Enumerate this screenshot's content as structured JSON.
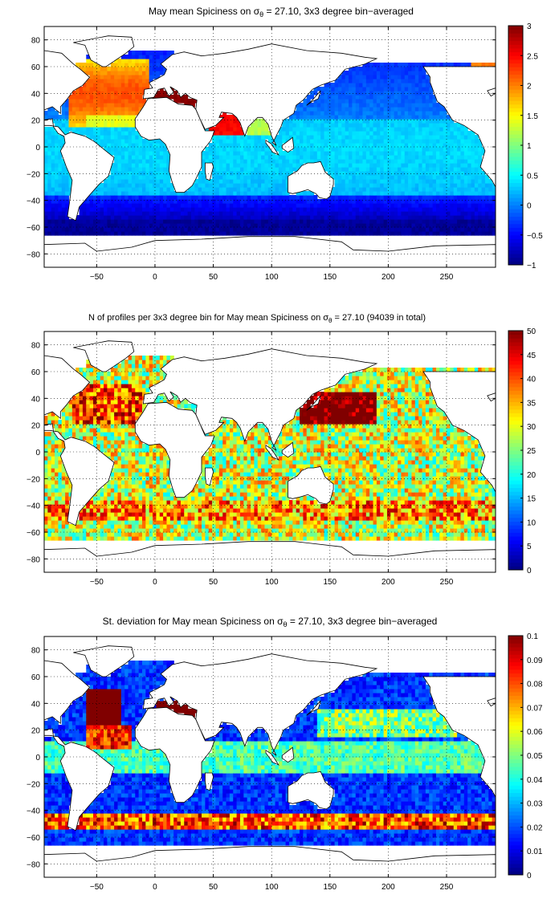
{
  "chart_data": [
    {
      "type": "heatmap",
      "title": "May mean Spiciness on σ",
      "title_sub": "θ",
      "title_rest": " = 27.10, 3x3 degree bin−averaged",
      "x_ticks": [
        "−50",
        "0",
        "50",
        "100",
        "150",
        "200",
        "250"
      ],
      "y_ticks": [
        "80",
        "60",
        "40",
        "20",
        "0",
        "−20",
        "−40",
        "−60",
        "−80"
      ],
      "xlim": [
        -95,
        292
      ],
      "ylim": [
        -90,
        90
      ],
      "colorbar": {
        "min": -1,
        "max": 3,
        "ticks": [
          "3",
          "2.5",
          "2",
          "1.5",
          "1",
          "0.5",
          "0",
          "−0.5",
          "−1"
        ]
      },
      "colormap": "jet",
      "grid": "dotted",
      "field": "spiciness"
    },
    {
      "type": "heatmap",
      "title": "N of profiles per 3x3 degree bin for May mean Spiciness on σ",
      "title_sub": "θ",
      "title_rest": " = 27.10 (94039 in total)",
      "x_ticks": [
        "−50",
        "0",
        "50",
        "100",
        "150",
        "200",
        "250"
      ],
      "y_ticks": [
        "80",
        "60",
        "40",
        "20",
        "0",
        "−20",
        "−40",
        "−60",
        "−80"
      ],
      "xlim": [
        -95,
        292
      ],
      "ylim": [
        -90,
        90
      ],
      "colorbar": {
        "min": 0,
        "max": 50,
        "ticks": [
          "50",
          "45",
          "40",
          "35",
          "30",
          "25",
          "20",
          "15",
          "10",
          "5",
          "0"
        ]
      },
      "colormap": "jet",
      "grid": "dotted",
      "field": "count"
    },
    {
      "type": "heatmap",
      "title": "St. deviation for May mean Spiciness on σ",
      "title_sub": "θ",
      "title_rest": " = 27.10, 3x3 degree bin−averaged",
      "x_ticks": [
        "−50",
        "0",
        "50",
        "100",
        "150",
        "200",
        "250"
      ],
      "y_ticks": [
        "80",
        "60",
        "40",
        "20",
        "0",
        "−20",
        "−40",
        "−60",
        "−80"
      ],
      "xlim": [
        -95,
        292
      ],
      "ylim": [
        -90,
        90
      ],
      "colorbar": {
        "min": 0,
        "max": 0.1,
        "ticks": [
          "0.1",
          "0.09",
          "0.08",
          "0.07",
          "0.06",
          "0.05",
          "0.04",
          "0.03",
          "0.02",
          "0.01",
          "0"
        ]
      },
      "colormap": "jet",
      "grid": "dotted",
      "field": "stdev"
    }
  ]
}
